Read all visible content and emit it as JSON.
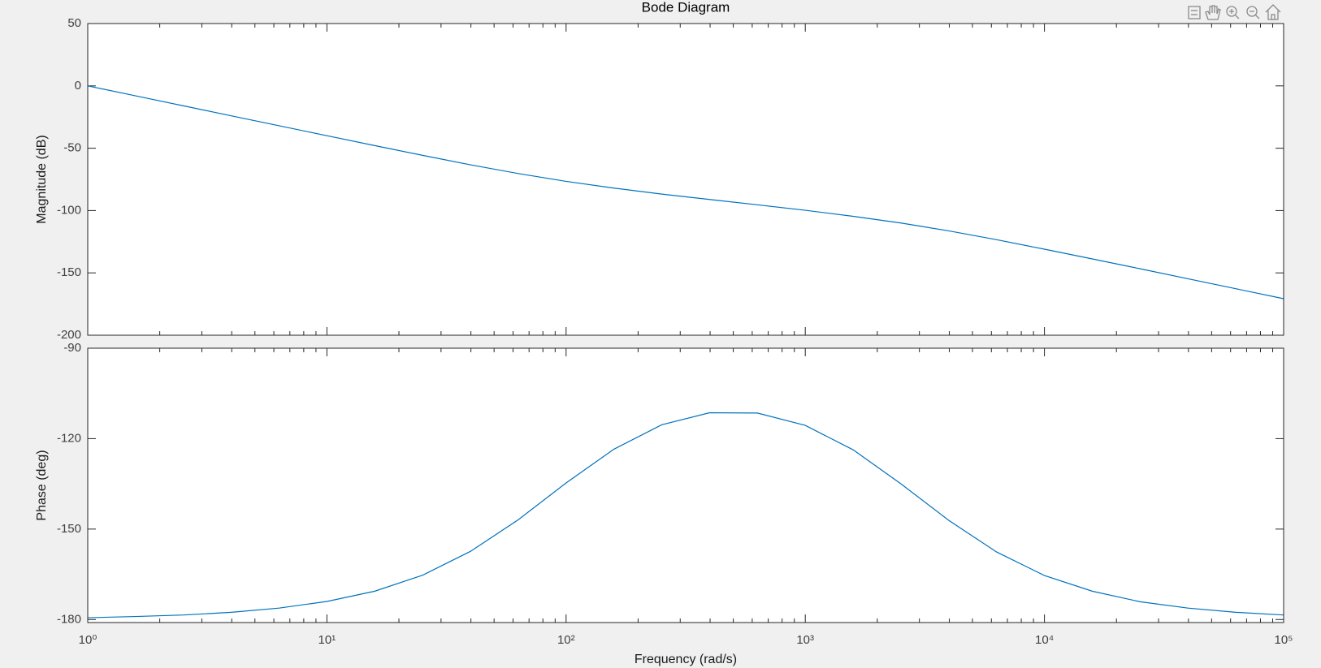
{
  "chart_data": [
    {
      "type": "line",
      "title": "Bode Diagram",
      "y_label": "Magnitude (dB)",
      "x": [
        1,
        1.585,
        2.512,
        3.981,
        6.31,
        10,
        15.85,
        25.12,
        39.81,
        63.1,
        100,
        158.5,
        251.2,
        398.1,
        631,
        1000,
        1585,
        2512,
        3981,
        6310,
        10000,
        15849,
        25119,
        39811,
        63096,
        100000
      ],
      "series": [
        {
          "color": "#0072bd",
          "values": [
            0,
            -8.0,
            -16.0,
            -24.0,
            -32.0,
            -39.95,
            -47.9,
            -55.7,
            -63.3,
            -70.3,
            -76.6,
            -82.0,
            -86.8,
            -91.1,
            -95.4,
            -99.8,
            -104.6,
            -110.0,
            -116.3,
            -123.4,
            -131.0,
            -138.8,
            -146.7,
            -154.7,
            -162.7,
            -170.7
          ]
        }
      ],
      "xlim": [
        1,
        100000
      ],
      "x_log": true,
      "ylim": [
        -200,
        50
      ],
      "yticks": [
        -200,
        -150,
        -100,
        -50,
        0,
        50
      ]
    },
    {
      "type": "line",
      "y_label": "Phase (deg)",
      "x_label": "Frequency  (rad/s)",
      "x": [
        1,
        1.585,
        2.512,
        3.981,
        6.31,
        10,
        15.85,
        25.12,
        39.81,
        63.1,
        100,
        158.5,
        251.2,
        398.1,
        631,
        1000,
        1585,
        2512,
        3981,
        6310,
        10000,
        15849,
        25119,
        39811,
        63096,
        100000
      ],
      "series": [
        {
          "color": "#0072bd",
          "values": [
            -179.4,
            -179.0,
            -178.5,
            -177.6,
            -176.2,
            -174.0,
            -170.6,
            -165.3,
            -157.4,
            -146.9,
            -134.7,
            -123.5,
            -115.4,
            -111.4,
            -111.5,
            -115.6,
            -123.7,
            -135.0,
            -147.1,
            -157.6,
            -165.4,
            -170.6,
            -174.1,
            -176.2,
            -177.6,
            -178.5
          ]
        }
      ],
      "xlim": [
        1,
        100000
      ],
      "x_log": true,
      "xticks": [
        {
          "value": 1,
          "label": "10⁰"
        },
        {
          "value": 10,
          "label": "10¹"
        },
        {
          "value": 100,
          "label": "10²"
        },
        {
          "value": 1000,
          "label": "10³"
        },
        {
          "value": 10000,
          "label": "10⁴"
        },
        {
          "value": 100000,
          "label": "10⁵"
        }
      ],
      "ylim": [
        -181,
        -90
      ],
      "yticks": [
        -180,
        -150,
        -120,
        -90
      ]
    }
  ]
}
